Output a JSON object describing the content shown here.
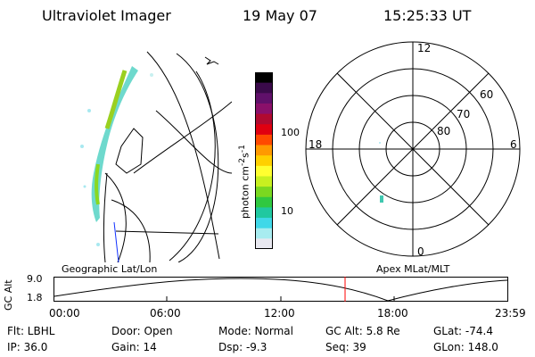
{
  "header": {
    "instrument": "Ultraviolet Imager",
    "date": "19 May 07",
    "time": "15:25:33 UT"
  },
  "colorbar": {
    "label": "photon cm",
    "label_sup1": "-2",
    "label_mid": "s",
    "label_sup2": "-1",
    "ticks": [
      "100",
      "10"
    ],
    "colors": [
      "#000000",
      "#3a0a4a",
      "#60106a",
      "#8a106a",
      "#b00a30",
      "#e00010",
      "#ff4a00",
      "#ff9a00",
      "#ffd000",
      "#ffff30",
      "#c8f020",
      "#7ad820",
      "#30c840",
      "#20c8a0",
      "#40d8e8",
      "#a8ecf0",
      "#e8e8f0"
    ]
  },
  "polar": {
    "lat_labels": [
      "60",
      "70",
      "80"
    ],
    "mlt_labels": [
      "12",
      "18",
      "6",
      "0"
    ]
  },
  "timeline": {
    "ylabel": "GC Alt",
    "yticks": [
      "9.0",
      "1.8"
    ],
    "left_label": "Geographic Lat/Lon",
    "right_label": "Apex MLat/MLT",
    "xticks": [
      "00:00",
      "06:00",
      "12:00",
      "18:00",
      "23:59"
    ],
    "current_time_hours": 15.42,
    "marker_color": "#ff0000"
  },
  "info": {
    "flt": "Flt: LBHL",
    "door": "Door: Open",
    "mode": "Mode: Normal",
    "gcalt": "GC Alt: 5.8 Re",
    "glat": "GLat: -74.4",
    "ip": "IP: 36.0",
    "gain": "Gain: 14",
    "dsp": "Dsp:   -9.3",
    "seq": "Seq: 39",
    "glon": "GLon: 148.0"
  }
}
